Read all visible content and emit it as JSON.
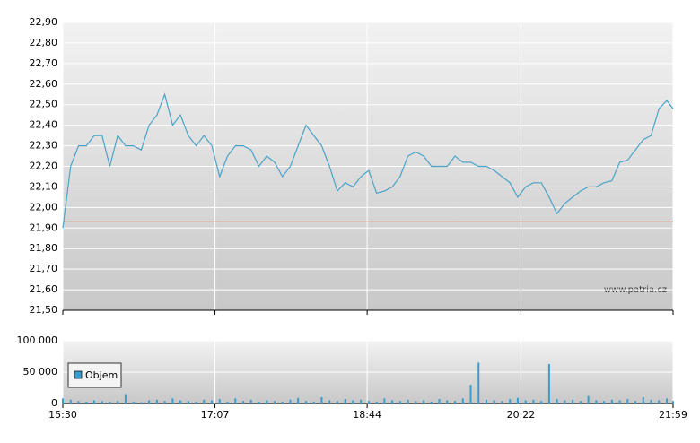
{
  "chart_data": [
    {
      "type": "line",
      "watermark": "www.patria.cz",
      "xlim": [
        "15:30",
        "21:59"
      ],
      "xticks": [
        "15:30",
        "17:07",
        "18:44",
        "20:22",
        "21:59"
      ],
      "ylim": [
        21.5,
        22.9
      ],
      "yticks": [
        {
          "value": 21.5,
          "label": "21,50"
        },
        {
          "value": 21.6,
          "label": "21,60"
        },
        {
          "value": 21.7,
          "label": "21,70"
        },
        {
          "value": 21.8,
          "label": "21,80"
        },
        {
          "value": 21.9,
          "label": "21,90"
        },
        {
          "value": 22.0,
          "label": "22,00"
        },
        {
          "value": 22.1,
          "label": "22,10"
        },
        {
          "value": 22.2,
          "label": "22,20"
        },
        {
          "value": 22.3,
          "label": "22,30"
        },
        {
          "value": 22.4,
          "label": "22,40"
        },
        {
          "value": 22.5,
          "label": "22,50"
        },
        {
          "value": 22.6,
          "label": "22,60"
        },
        {
          "value": 22.7,
          "label": "22,70"
        },
        {
          "value": 22.8,
          "label": "22,80"
        },
        {
          "value": 22.9,
          "label": "22,90"
        }
      ],
      "grid": true,
      "reference_line": {
        "value": 21.93,
        "color": "#e05050"
      },
      "x": [
        "15:30",
        "15:35",
        "15:40",
        "15:45",
        "15:50",
        "15:55",
        "16:00",
        "16:05",
        "16:10",
        "16:15",
        "16:20",
        "16:25",
        "16:30",
        "16:35",
        "16:40",
        "16:45",
        "16:50",
        "16:55",
        "17:00",
        "17:05",
        "17:10",
        "17:15",
        "17:20",
        "17:25",
        "17:30",
        "17:35",
        "17:40",
        "17:45",
        "17:50",
        "17:55",
        "18:00",
        "18:05",
        "18:10",
        "18:15",
        "18:20",
        "18:25",
        "18:30",
        "18:35",
        "18:40",
        "18:45",
        "18:50",
        "18:55",
        "19:00",
        "19:05",
        "19:10",
        "19:15",
        "19:20",
        "19:25",
        "19:30",
        "19:35",
        "19:40",
        "19:45",
        "19:50",
        "19:55",
        "20:00",
        "20:05",
        "20:10",
        "20:15",
        "20:20",
        "20:25",
        "20:30",
        "20:35",
        "20:40",
        "20:45",
        "20:50",
        "20:55",
        "21:00",
        "21:05",
        "21:10",
        "21:15",
        "21:20",
        "21:25",
        "21:30",
        "21:35",
        "21:40",
        "21:45",
        "21:50",
        "21:55",
        "21:59"
      ],
      "series": [
        {
          "color": "#4aa3c8",
          "values": [
            21.9,
            22.2,
            22.3,
            22.3,
            22.35,
            22.35,
            22.2,
            22.35,
            22.3,
            22.3,
            22.28,
            22.4,
            22.45,
            22.55,
            22.4,
            22.45,
            22.35,
            22.3,
            22.35,
            22.3,
            22.15,
            22.25,
            22.3,
            22.3,
            22.28,
            22.2,
            22.25,
            22.22,
            22.15,
            22.2,
            22.3,
            22.4,
            22.35,
            22.3,
            22.2,
            22.08,
            22.12,
            22.1,
            22.15,
            22.18,
            22.07,
            22.08,
            22.1,
            22.15,
            22.25,
            22.27,
            22.25,
            22.2,
            22.2,
            22.2,
            22.25,
            22.22,
            22.22,
            22.2,
            22.2,
            22.18,
            22.15,
            22.12,
            22.05,
            22.1,
            22.12,
            22.12,
            22.05,
            21.97,
            22.02,
            22.05,
            22.08,
            22.1,
            22.1,
            22.12,
            22.13,
            22.22,
            22.23,
            22.28,
            22.33,
            22.35,
            22.48,
            22.52,
            22.48
          ]
        }
      ]
    },
    {
      "type": "bar",
      "xlim": [
        "15:30",
        "21:59"
      ],
      "xticks": [
        "15:30",
        "17:07",
        "18:44",
        "20:22",
        "21:59"
      ],
      "ylim": [
        0,
        100000
      ],
      "yticks": [
        {
          "value": 0,
          "label": "0"
        },
        {
          "value": 50000,
          "label": "50 000"
        },
        {
          "value": 100000,
          "label": "100 000"
        }
      ],
      "grid": true,
      "x": [
        "15:30",
        "15:35",
        "15:40",
        "15:45",
        "15:50",
        "15:55",
        "16:00",
        "16:05",
        "16:10",
        "16:15",
        "16:20",
        "16:25",
        "16:30",
        "16:35",
        "16:40",
        "16:45",
        "16:50",
        "16:55",
        "17:00",
        "17:05",
        "17:10",
        "17:15",
        "17:20",
        "17:25",
        "17:30",
        "17:35",
        "17:40",
        "17:45",
        "17:50",
        "17:55",
        "18:00",
        "18:05",
        "18:10",
        "18:15",
        "18:20",
        "18:25",
        "18:30",
        "18:35",
        "18:40",
        "18:45",
        "18:50",
        "18:55",
        "19:00",
        "19:05",
        "19:10",
        "19:15",
        "19:20",
        "19:25",
        "19:30",
        "19:35",
        "19:40",
        "19:45",
        "19:50",
        "19:55",
        "20:00",
        "20:05",
        "20:10",
        "20:15",
        "20:20",
        "20:25",
        "20:30",
        "20:35",
        "20:40",
        "20:45",
        "20:50",
        "20:55",
        "21:00",
        "21:05",
        "21:10",
        "21:15",
        "21:20",
        "21:25",
        "21:30",
        "21:35",
        "21:40",
        "21:45",
        "21:50",
        "21:55",
        "21:59"
      ],
      "series": [
        {
          "name": "Objem",
          "color": "#3b9ccc",
          "values": [
            8000,
            6000,
            4000,
            3000,
            5000,
            4000,
            3000,
            4000,
            15000,
            3000,
            2000,
            5000,
            6000,
            4000,
            8000,
            5000,
            4000,
            3000,
            6000,
            5000,
            7000,
            3000,
            8000,
            4000,
            6000,
            3000,
            5000,
            4000,
            3000,
            6000,
            9000,
            4000,
            3000,
            10000,
            5000,
            4000,
            7000,
            5000,
            6000,
            4000,
            3000,
            8000,
            5000,
            4000,
            6000,
            4000,
            5000,
            3000,
            7000,
            5000,
            4000,
            8000,
            30000,
            65000,
            6000,
            5000,
            4000,
            7000,
            9000,
            5000,
            6000,
            4000,
            63000,
            7000,
            5000,
            6000,
            4000,
            12000,
            5000,
            4000,
            6000,
            5000,
            7000,
            4000,
            10000,
            6000,
            5000,
            8000,
            4000
          ]
        }
      ]
    }
  ]
}
